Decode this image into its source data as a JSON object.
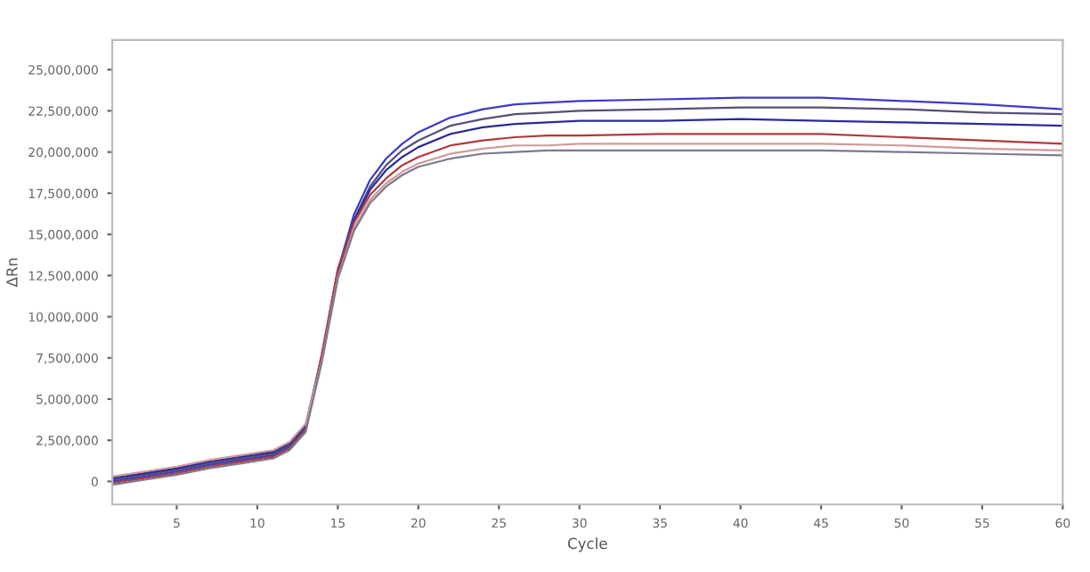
{
  "chart_data": {
    "type": "line",
    "xlabel": "Cycle",
    "ylabel": "ΔRn",
    "x": [
      1,
      3,
      5,
      7,
      9,
      11,
      12,
      13,
      14,
      15,
      16,
      17,
      18,
      19,
      20,
      22,
      24,
      26,
      28,
      30,
      35,
      40,
      45,
      50,
      55,
      60
    ],
    "series": [
      {
        "color": "#3a3ad0",
        "values": [
          0,
          300000,
          600000,
          1000000,
          1300000,
          1600000,
          2100000,
          3200000,
          7500000,
          12800000,
          16200000,
          18300000,
          19600000,
          20500000,
          21200000,
          22100000,
          22600000,
          22900000,
          23000000,
          23100000,
          23200000,
          23300000,
          23300000,
          23100000,
          22900000,
          22600000
        ]
      },
      {
        "color": "#50507a",
        "values": [
          100000,
          400000,
          700000,
          1100000,
          1400000,
          1700000,
          2200000,
          3300000,
          7400000,
          12600000,
          15900000,
          17900000,
          19200000,
          20100000,
          20700000,
          21600000,
          22000000,
          22300000,
          22400000,
          22500000,
          22600000,
          22700000,
          22700000,
          22600000,
          22400000,
          22300000
        ]
      },
      {
        "color": "#2a2a9a",
        "values": [
          200000,
          500000,
          800000,
          1200000,
          1500000,
          1800000,
          2300000,
          3400000,
          7600000,
          12700000,
          15800000,
          17700000,
          18900000,
          19700000,
          20300000,
          21100000,
          21500000,
          21700000,
          21800000,
          21900000,
          21900000,
          22000000,
          21900000,
          21800000,
          21700000,
          21600000
        ]
      },
      {
        "color": "#b03a3a",
        "values": [
          -100000,
          200000,
          500000,
          900000,
          1200000,
          1500000,
          2000000,
          3100000,
          7700000,
          12900000,
          15700000,
          17400000,
          18400000,
          19200000,
          19700000,
          20400000,
          20700000,
          20900000,
          21000000,
          21000000,
          21100000,
          21100000,
          21100000,
          20900000,
          20700000,
          20500000
        ]
      },
      {
        "color": "#d09a9a",
        "values": [
          300000,
          600000,
          900000,
          1300000,
          1600000,
          1900000,
          2400000,
          3500000,
          7300000,
          12400000,
          15400000,
          17100000,
          18100000,
          18800000,
          19300000,
          19900000,
          20200000,
          20400000,
          20400000,
          20500000,
          20500000,
          20500000,
          20500000,
          20400000,
          20200000,
          20100000
        ]
      },
      {
        "color": "#7a7a90",
        "values": [
          -200000,
          100000,
          400000,
          800000,
          1100000,
          1400000,
          1900000,
          3000000,
          7200000,
          12300000,
          15200000,
          16900000,
          17900000,
          18600000,
          19100000,
          19600000,
          19900000,
          20000000,
          20100000,
          20100000,
          20100000,
          20100000,
          20100000,
          20000000,
          19900000,
          19800000
        ]
      }
    ],
    "xlim": [
      1,
      60
    ],
    "xticks": [
      5,
      10,
      15,
      20,
      25,
      30,
      35,
      40,
      45,
      50,
      55,
      60
    ],
    "ylim": [
      -1400000,
      26800000
    ],
    "yticks": [
      0,
      {
        "value": 2500000,
        "label": "2,500,000"
      },
      {
        "value": 5000000,
        "label": "5,000,000"
      },
      {
        "value": 7500000,
        "label": "7,500,000"
      },
      {
        "value": 10000000,
        "label": "10,000,000"
      },
      {
        "value": 12500000,
        "label": "12,500,000"
      },
      {
        "value": 15000000,
        "label": "15,000,000"
      },
      {
        "value": 17500000,
        "label": "17,500,000"
      },
      {
        "value": 20000000,
        "label": "20,000,000"
      },
      {
        "value": 22500000,
        "label": "22,500,000"
      },
      {
        "value": 25000000,
        "label": "25,000,000"
      }
    ],
    "grid": false,
    "marker": "none",
    "line_style": "solid"
  }
}
